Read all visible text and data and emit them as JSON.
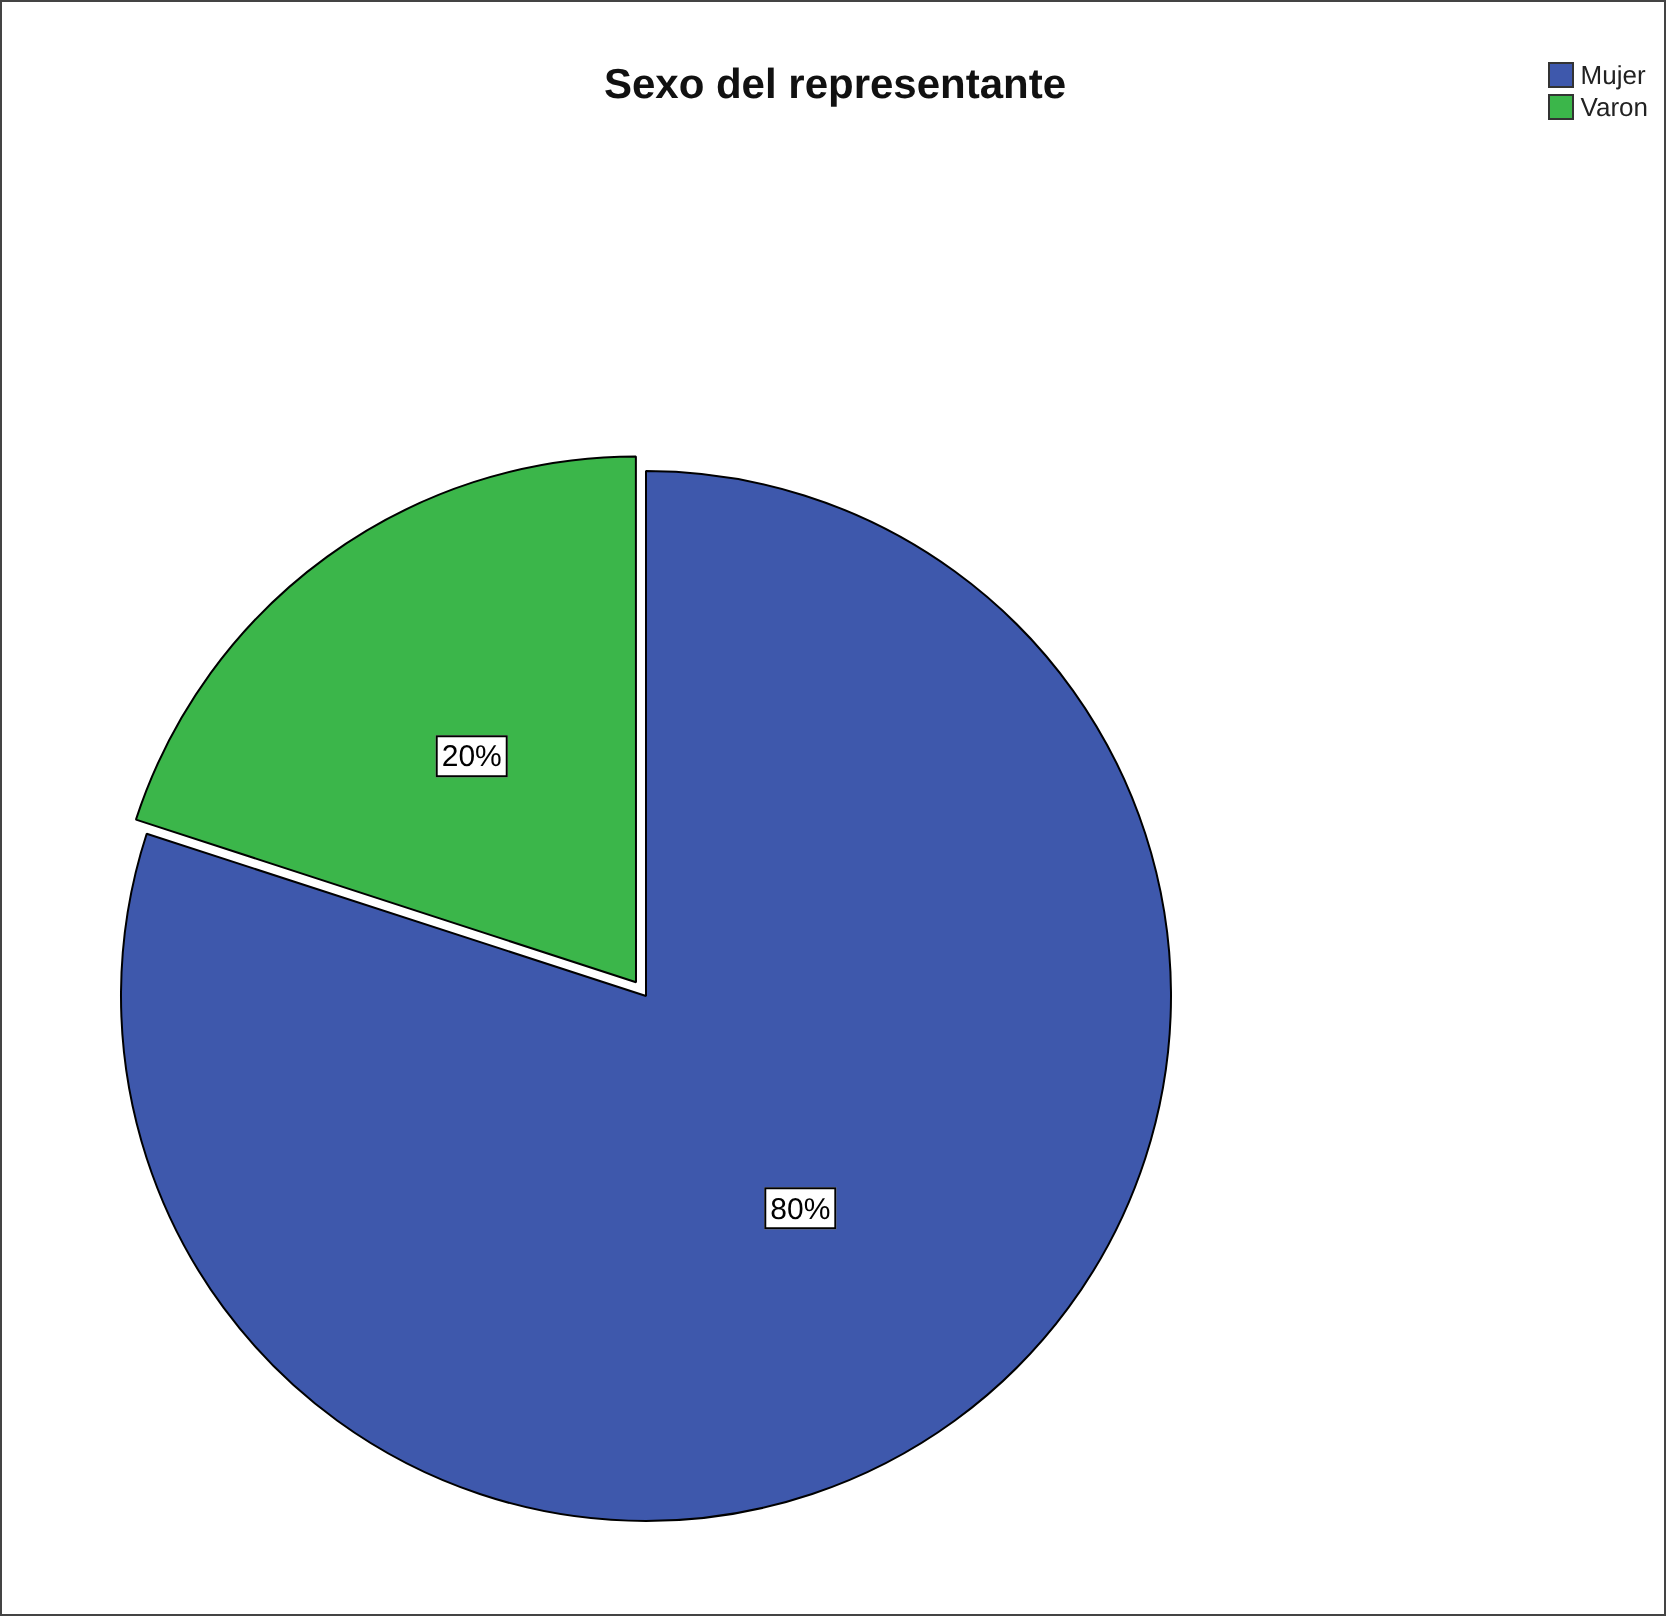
{
  "chart_data": {
    "type": "pie",
    "title": "Sexo del representante",
    "categories": [
      "Mujer",
      "Varon"
    ],
    "values": [
      80,
      20
    ],
    "colors": [
      "#3e58ac",
      "#3bb64a"
    ],
    "value_labels": [
      "80%",
      "20%"
    ],
    "legend": "top right"
  }
}
